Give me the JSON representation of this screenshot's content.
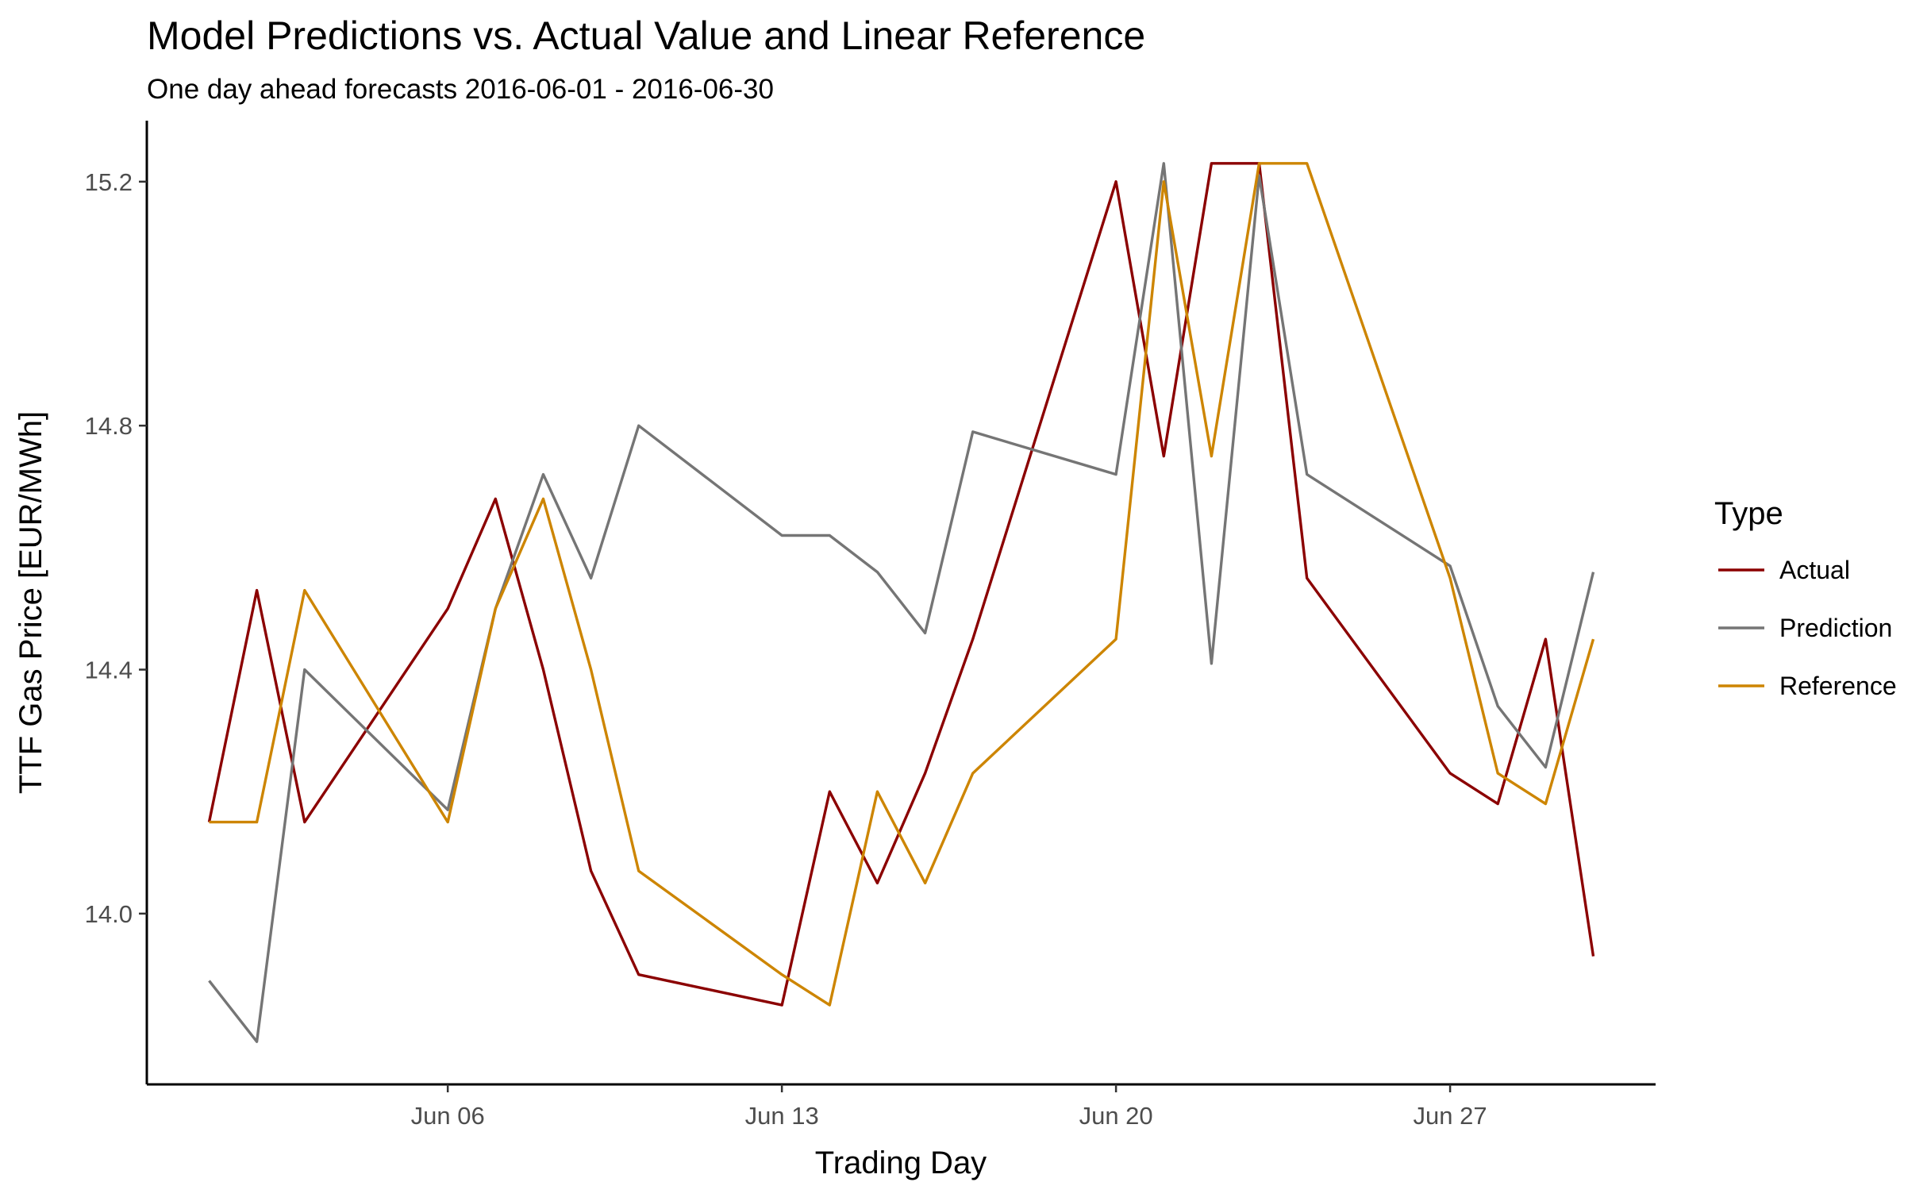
{
  "chart_data": {
    "type": "line",
    "title": "Model Predictions vs. Actual Value and Linear Reference",
    "subtitle": "One day ahead forecasts 2016-06-01 - 2016-06-30",
    "xlabel": "Trading Day",
    "ylabel": "TTF Gas Price [EUR/MWh]",
    "ylim": [
      13.72,
      15.3
    ],
    "xlim": [
      "2016-06-01",
      "2016-06-30"
    ],
    "grid": false,
    "legend": {
      "title": "Type",
      "position": "right"
    },
    "x_ticks": [
      {
        "date": "2016-06-06",
        "label": "Jun 06"
      },
      {
        "date": "2016-06-13",
        "label": "Jun 13"
      },
      {
        "date": "2016-06-20",
        "label": "Jun 20"
      },
      {
        "date": "2016-06-27",
        "label": "Jun 27"
      }
    ],
    "y_ticks": [
      {
        "value": 14.0,
        "label": "14.0"
      },
      {
        "value": 14.4,
        "label": "14.4"
      },
      {
        "value": 14.8,
        "label": "14.8"
      },
      {
        "value": 15.2,
        "label": "15.2"
      }
    ],
    "x": [
      "2016-06-01",
      "2016-06-02",
      "2016-06-03",
      "2016-06-06",
      "2016-06-07",
      "2016-06-08",
      "2016-06-09",
      "2016-06-10",
      "2016-06-13",
      "2016-06-14",
      "2016-06-15",
      "2016-06-16",
      "2016-06-17",
      "2016-06-20",
      "2016-06-21",
      "2016-06-22",
      "2016-06-23",
      "2016-06-24",
      "2016-06-27",
      "2016-06-28",
      "2016-06-29",
      "2016-06-30"
    ],
    "series": [
      {
        "name": "Actual",
        "color": "#8b0000",
        "values": [
          14.15,
          14.53,
          14.15,
          14.5,
          14.68,
          14.4,
          14.07,
          13.9,
          13.85,
          14.2,
          14.05,
          14.23,
          14.45,
          15.2,
          14.75,
          15.23,
          15.23,
          14.55,
          14.23,
          14.18,
          14.45,
          13.93
        ]
      },
      {
        "name": "Prediction",
        "color": "#757575",
        "values": [
          13.89,
          13.79,
          14.4,
          14.17,
          14.5,
          14.72,
          14.55,
          14.8,
          14.62,
          14.62,
          14.56,
          14.46,
          14.79,
          14.72,
          15.23,
          14.41,
          15.21,
          14.72,
          14.57,
          14.34,
          14.24,
          14.56
        ]
      },
      {
        "name": "Reference",
        "color": "#cd8500",
        "values": [
          14.15,
          14.15,
          14.53,
          14.15,
          14.5,
          14.68,
          14.4,
          14.07,
          13.9,
          13.85,
          14.2,
          14.05,
          14.23,
          14.45,
          15.2,
          14.75,
          15.23,
          15.23,
          14.55,
          14.23,
          14.18,
          14.45
        ]
      }
    ]
  }
}
